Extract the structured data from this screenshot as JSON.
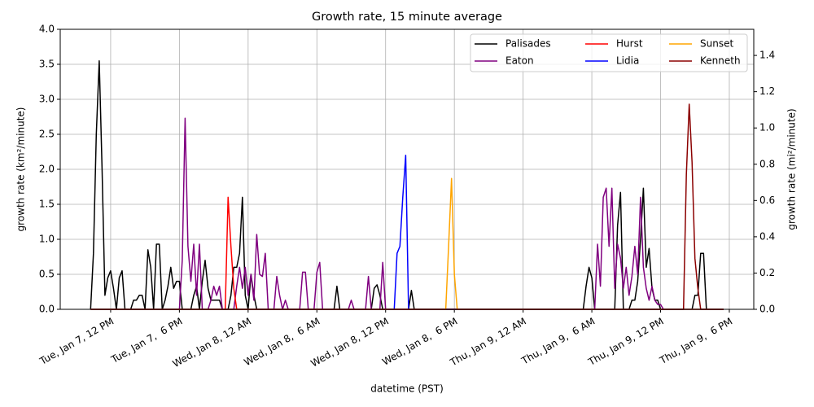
{
  "chart_data": {
    "type": "line",
    "title": "Growth rate, 15 minute average",
    "x_label": "datetime (PST)",
    "y_label": "growth rate (km²/minute)",
    "y2_label": "growth rate (mi²/minute)",
    "xlim": [
      "01-07 07:36",
      "01-09 20:08"
    ],
    "xticks": [
      {
        "value": "01-07 12:00",
        "label": "Tue, Jan 7, 12 PM"
      },
      {
        "value": "01-07 18:00",
        "label": "Tue, Jan 7,  6 PM"
      },
      {
        "value": "01-08 00:00",
        "label": "Wed, Jan 8, 12 AM"
      },
      {
        "value": "01-08 06:00",
        "label": "Wed, Jan 8,  6 AM"
      },
      {
        "value": "01-08 12:00",
        "label": "Wed, Jan 8, 12 PM"
      },
      {
        "value": "01-08 18:00",
        "label": "Wed, Jan 8,  6 PM"
      },
      {
        "value": "01-09 00:00",
        "label": "Thu, Jan 9, 12 AM"
      },
      {
        "value": "01-09 06:00",
        "label": "Thu, Jan 9,  6 AM"
      },
      {
        "value": "01-09 12:00",
        "label": "Thu, Jan 9, 12 PM"
      },
      {
        "value": "01-09 18:00",
        "label": "Thu, Jan 9,  6 PM"
      }
    ],
    "ylim": [
      0,
      4
    ],
    "yticks": [
      {
        "value": 0,
        "label": "0.0"
      },
      0.5,
      {
        "value": 1,
        "label": "1.0"
      },
      1.5,
      {
        "value": 2,
        "label": "2.0"
      },
      2.5,
      {
        "value": 3,
        "label": "3.0"
      },
      3.5,
      {
        "value": 4,
        "label": "4.0"
      }
    ],
    "y2lim": [
      0,
      1.544
    ],
    "y2ticks": [
      {
        "value": 0,
        "label": "0.0"
      },
      0.2,
      0.4,
      0.6,
      0.8,
      {
        "value": 1,
        "label": "1.0"
      },
      1.2,
      1.4
    ],
    "grid": true,
    "legend": "upper right",
    "legend_columns": 3,
    "series": [
      {
        "name": "Palisades",
        "color": "#000000",
        "x": [
          "01-07 10:15",
          "01-07 10:30",
          "01-07 10:45",
          "01-07 11:00",
          "01-07 11:15",
          "01-07 11:30",
          "01-07 11:45",
          "01-07 12:00",
          "01-07 12:15",
          "01-07 12:30",
          "01-07 12:45",
          "01-07 13:00",
          "01-07 13:15",
          "01-07 13:45",
          "01-07 14:00",
          "01-07 14:15",
          "01-07 14:30",
          "01-07 14:45",
          "01-07 15:00",
          "01-07 15:15",
          "01-07 15:30",
          "01-07 15:45",
          "01-07 16:00",
          "01-07 16:15",
          "01-07 16:30",
          "01-07 16:45",
          "01-07 17:00",
          "01-07 17:15",
          "01-07 17:30",
          "01-07 17:45",
          "01-07 18:00",
          "01-07 18:15",
          "01-07 19:00",
          "01-07 19:15",
          "01-07 19:30",
          "01-07 19:45",
          "01-07 20:00",
          "01-07 20:15",
          "01-07 20:30",
          "01-07 20:45",
          "01-07 21:00",
          "01-07 21:15",
          "01-07 21:30",
          "01-07 21:45",
          "01-07 22:15",
          "01-07 22:30",
          "01-07 22:45",
          "01-07 23:00",
          "01-07 23:15",
          "01-07 23:30",
          "01-07 23:45",
          "01-08 00:00",
          "01-08 00:15",
          "01-08 00:30",
          "01-08 00:45",
          "01-08 07:30",
          "01-08 07:45",
          "01-08 08:00",
          "01-08 10:45",
          "01-08 11:00",
          "01-08 11:15",
          "01-08 11:30",
          "01-08 11:45",
          "01-08 14:00",
          "01-08 14:15",
          "01-08 14:30",
          "01-09 05:15",
          "01-09 05:30",
          "01-09 05:45",
          "01-09 06:00",
          "01-09 06:15",
          "01-09 08:00",
          "01-09 08:15",
          "01-09 08:30",
          "01-09 08:45",
          "01-09 09:15",
          "01-09 09:30",
          "01-09 09:45",
          "01-09 10:00",
          "01-09 10:15",
          "01-09 10:30",
          "01-09 10:45",
          "01-09 11:00",
          "01-09 11:15",
          "01-09 11:30",
          "01-09 11:45",
          "01-09 12:00",
          "01-09 14:45",
          "01-09 15:00",
          "01-09 15:15",
          "01-09 15:30",
          "01-09 15:45",
          "01-09 16:00",
          "01-09 17:30"
        ],
        "values": [
          0,
          0.8,
          2.5,
          3.55,
          2.0,
          0.2,
          0.45,
          0.55,
          0.3,
          0,
          0.45,
          0.55,
          0,
          0,
          0.13,
          0.13,
          0.2,
          0.2,
          0,
          0.85,
          0.6,
          0,
          0.93,
          0.93,
          0,
          0.13,
          0.33,
          0.6,
          0.3,
          0.4,
          0.4,
          0,
          0,
          0.2,
          0.33,
          0,
          0.4,
          0.7,
          0.3,
          0.13,
          0.13,
          0.13,
          0.13,
          0,
          0,
          0.2,
          0.6,
          0.6,
          0.8,
          1.6,
          0.2,
          0,
          0.5,
          0.2,
          0,
          0,
          0.33,
          0,
          0,
          0.3,
          0.35,
          0.2,
          0,
          0,
          0.27,
          0,
          0,
          0.33,
          0.6,
          0.45,
          0,
          0,
          1.2,
          1.67,
          0,
          0,
          0.13,
          0.13,
          0.4,
          1.0,
          1.73,
          0.6,
          0.87,
          0.3,
          0.13,
          0.13,
          0,
          0,
          0.2,
          0.2,
          0.8,
          0.8,
          0,
          0
        ]
      },
      {
        "name": "Eaton",
        "color": "#800080",
        "x": [
          "01-07 10:15",
          "01-07 18:00",
          "01-07 18:15",
          "01-07 18:30",
          "01-07 18:45",
          "01-07 19:00",
          "01-07 19:15",
          "01-07 19:30",
          "01-07 19:45",
          "01-07 20:00",
          "01-07 20:30",
          "01-07 20:45",
          "01-07 21:00",
          "01-07 21:15",
          "01-07 21:30",
          "01-07 21:45",
          "01-07 22:45",
          "01-07 23:00",
          "01-07 23:15",
          "01-07 23:30",
          "01-07 23:45",
          "01-08 00:00",
          "01-08 00:15",
          "01-08 00:30",
          "01-08 00:45",
          "01-08 01:00",
          "01-08 01:15",
          "01-08 01:30",
          "01-08 01:45",
          "01-08 02:15",
          "01-08 02:30",
          "01-08 02:45",
          "01-08 03:00",
          "01-08 03:15",
          "01-08 03:30",
          "01-08 04:30",
          "01-08 04:45",
          "01-08 05:00",
          "01-08 05:15",
          "01-08 05:45",
          "01-08 06:00",
          "01-08 06:15",
          "01-08 06:30",
          "01-08 08:45",
          "01-08 09:00",
          "01-08 09:15",
          "01-08 10:15",
          "01-08 10:30",
          "01-08 10:45",
          "01-08 11:30",
          "01-08 11:45",
          "01-08 12:00",
          "01-09 06:15",
          "01-09 06:30",
          "01-09 06:45",
          "01-09 07:00",
          "01-09 07:15",
          "01-09 07:30",
          "01-09 07:45",
          "01-09 08:00",
          "01-09 08:15",
          "01-09 08:30",
          "01-09 08:45",
          "01-09 09:00",
          "01-09 09:15",
          "01-09 09:30",
          "01-09 09:45",
          "01-09 10:00",
          "01-09 10:15",
          "01-09 10:30",
          "01-09 10:45",
          "01-09 11:00",
          "01-09 11:15",
          "01-09 11:30",
          "01-09 11:45",
          "01-09 12:00",
          "01-09 12:15",
          "01-09 17:30"
        ],
        "values": [
          0,
          0,
          0.7,
          2.73,
          0.9,
          0.4,
          0.93,
          0.2,
          0.93,
          0,
          0,
          0.13,
          0.33,
          0.2,
          0.33,
          0,
          0,
          0.33,
          0.6,
          0.3,
          0.6,
          0.2,
          0.5,
          0.13,
          1.07,
          0.5,
          0.47,
          0.8,
          0,
          0,
          0.47,
          0.2,
          0,
          0.13,
          0,
          0,
          0.53,
          0.53,
          0,
          0,
          0.53,
          0.67,
          0,
          0,
          0.13,
          0,
          0,
          0.47,
          0,
          0,
          0.67,
          0,
          0,
          0.93,
          0.33,
          1.6,
          1.73,
          0.9,
          1.73,
          0.3,
          0.93,
          0.73,
          0.3,
          0.6,
          0.2,
          0.47,
          0.9,
          0.5,
          1.6,
          0.6,
          0.3,
          0.13,
          0.33,
          0.13,
          0.07,
          0.07,
          0,
          0
        ]
      },
      {
        "name": "Hurst",
        "color": "#ff0000",
        "x": [
          "01-07 10:15",
          "01-07 22:00",
          "01-07 22:15",
          "01-07 22:30",
          "01-07 22:45",
          "01-07 23:00",
          "01-09 17:30"
        ],
        "values": [
          0,
          0,
          1.6,
          0.9,
          0.3,
          0,
          0
        ]
      },
      {
        "name": "Lidia",
        "color": "#0000ff",
        "x": [
          "01-07 10:15",
          "01-08 12:45",
          "01-08 13:00",
          "01-08 13:15",
          "01-08 13:30",
          "01-08 13:45",
          "01-08 14:00",
          "01-09 17:30"
        ],
        "values": [
          0,
          0,
          0.8,
          0.9,
          1.6,
          2.2,
          0,
          0
        ]
      },
      {
        "name": "Sunset",
        "color": "#ffa500",
        "x": [
          "01-07 10:15",
          "01-08 17:15",
          "01-08 17:30",
          "01-08 17:45",
          "01-08 18:00",
          "01-08 18:15",
          "01-09 17:30"
        ],
        "values": [
          0,
          0,
          0.9,
          1.87,
          0.5,
          0,
          0
        ]
      },
      {
        "name": "Kenneth",
        "color": "#8b0000",
        "x": [
          "01-07 10:15",
          "01-09 14:00",
          "01-09 14:15",
          "01-09 14:30",
          "01-09 14:45",
          "01-09 15:00",
          "01-09 15:15",
          "01-09 15:30",
          "01-09 17:30"
        ],
        "values": [
          0,
          0,
          1.93,
          2.93,
          2.1,
          0.73,
          0.3,
          0,
          0
        ]
      }
    ]
  }
}
